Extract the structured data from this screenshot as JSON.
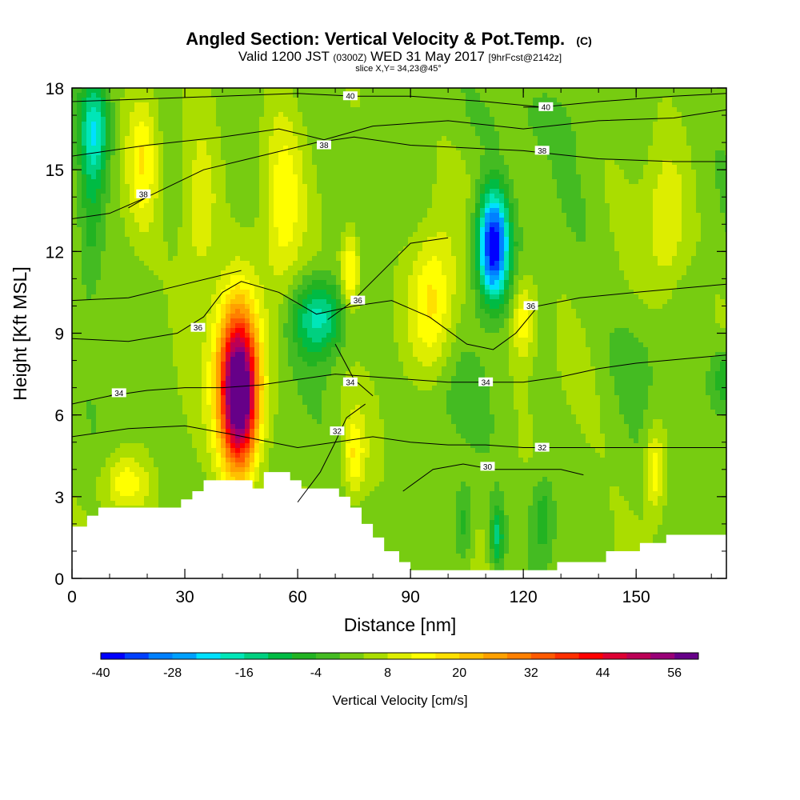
{
  "chart_data": {
    "type": "heatmap",
    "title": "Angled Section: Vertical Velocity & Pot.Temp.",
    "title_suffix": "(C)",
    "subtitle_parts": [
      "Valid 1200 JST",
      "(0300Z)",
      "WED 31 May 2017",
      "[9hrFcst@2142z]"
    ],
    "subtitle2": "slice X,Y= 34,23@45°",
    "xlabel": "Distance [nm]",
    "ylabel": "Height [Kft MSL]",
    "xlim": [
      0,
      174
    ],
    "ylim": [
      0,
      18
    ],
    "x_ticks": [
      0,
      30,
      60,
      90,
      120,
      150
    ],
    "y_ticks": [
      0,
      3,
      6,
      9,
      12,
      15,
      18
    ],
    "colorbar": {
      "label": "Vertical Velocity [cm/s]",
      "min": -40,
      "max": 60,
      "step": 4,
      "tick_labels": [
        -40,
        -28,
        -16,
        -4,
        8,
        20,
        32,
        44,
        56
      ],
      "colors": [
        "#0000ff",
        "#0040ff",
        "#0080ff",
        "#00a0ff",
        "#00e0ff",
        "#00e6b8",
        "#00d080",
        "#00bb44",
        "#22b322",
        "#44bb22",
        "#77cc11",
        "#aadd00",
        "#dded00",
        "#ffff00",
        "#ffe000",
        "#ffc000",
        "#ffa000",
        "#ff8000",
        "#ff5a00",
        "#ff3000",
        "#ff0000",
        "#dd0033",
        "#bb0055",
        "#990077",
        "#660088"
      ]
    },
    "terrain_kft": [
      [
        0,
        1.9
      ],
      [
        4,
        1.9
      ],
      [
        4,
        2.3
      ],
      [
        7,
        2.3
      ],
      [
        7,
        2.6
      ],
      [
        29,
        2.6
      ],
      [
        29,
        2.9
      ],
      [
        32,
        2.9
      ],
      [
        32,
        3.2
      ],
      [
        35,
        3.2
      ],
      [
        35,
        3.6
      ],
      [
        48,
        3.6
      ],
      [
        48,
        3.3
      ],
      [
        51,
        3.3
      ],
      [
        51,
        3.9
      ],
      [
        58,
        3.9
      ],
      [
        58,
        3.6
      ],
      [
        61,
        3.6
      ],
      [
        61,
        3.3
      ],
      [
        71,
        3.3
      ],
      [
        71,
        3.0
      ],
      [
        74,
        3.0
      ],
      [
        74,
        2.6
      ],
      [
        77,
        2.6
      ],
      [
        77,
        2.0
      ],
      [
        80,
        2.0
      ],
      [
        80,
        1.5
      ],
      [
        83,
        1.5
      ],
      [
        83,
        1.0
      ],
      [
        87,
        1.0
      ],
      [
        87,
        0.6
      ],
      [
        90,
        0.6
      ],
      [
        90,
        0.3
      ],
      [
        129,
        0.3
      ],
      [
        129,
        0.6
      ],
      [
        142,
        0.6
      ],
      [
        142,
        1.0
      ],
      [
        151,
        1.0
      ],
      [
        151,
        1.3
      ],
      [
        158,
        1.3
      ],
      [
        158,
        1.6
      ],
      [
        174,
        1.6
      ]
    ],
    "velocity_features": [
      {
        "x": 44.5,
        "z": 6.5,
        "sx": 5,
        "sz": 2.6,
        "value": 60
      },
      {
        "x": 43.5,
        "z": 8.5,
        "sx": 6,
        "sz": 2.5,
        "value": 18
      },
      {
        "x": 112,
        "z": 12.2,
        "sx": 4.2,
        "sz": 2.0,
        "value": -44
      },
      {
        "x": 66,
        "z": 9.6,
        "sx": 7,
        "sz": 1.4,
        "value": -20
      },
      {
        "x": 6,
        "z": 16.5,
        "sx": 4,
        "sz": 2.0,
        "value": -20
      },
      {
        "x": 5,
        "z": 13.0,
        "sx": 3.5,
        "sz": 3.0,
        "value": -9
      },
      {
        "x": 113,
        "z": 1.5,
        "sx": 1.8,
        "sz": 1.2,
        "value": -16
      },
      {
        "x": 104,
        "z": 2.0,
        "sx": 2.5,
        "sz": 1.5,
        "value": -10
      },
      {
        "x": 125,
        "z": 2.2,
        "sx": 3,
        "sz": 1.5,
        "value": -10
      },
      {
        "x": 174,
        "z": 7.3,
        "sx": 4,
        "sz": 1.2,
        "value": -12
      },
      {
        "x": 96,
        "z": 10.3,
        "sx": 6,
        "sz": 2.5,
        "value": 15
      },
      {
        "x": 74,
        "z": 11.2,
        "sx": 2.5,
        "sz": 1.5,
        "value": 17
      },
      {
        "x": 56,
        "z": 13.5,
        "sx": 5,
        "sz": 3.5,
        "value": 11
      },
      {
        "x": 34,
        "z": 13.5,
        "sx": 5,
        "sz": 3.0,
        "value": 11
      },
      {
        "x": 19,
        "z": 15.5,
        "sx": 4,
        "sz": 2.5,
        "value": 12
      },
      {
        "x": 155,
        "z": 4.0,
        "sx": 2.5,
        "sz": 1.5,
        "value": 14
      },
      {
        "x": 158,
        "z": 13,
        "sx": 5,
        "sz": 2.5,
        "value": 9
      },
      {
        "x": 14,
        "z": 3.5,
        "sx": 6,
        "sz": 1.0,
        "value": 12
      },
      {
        "x": 75,
        "z": 4.5,
        "sx": 3,
        "sz": 1.5,
        "value": 13
      },
      {
        "x": 120,
        "z": 9.5,
        "sx": 3,
        "sz": 1.5,
        "value": 13
      },
      {
        "x": 100,
        "z": 6.5,
        "sx": 10,
        "sz": 1.5,
        "value": -3
      },
      {
        "x": 120,
        "z": 16.8,
        "sx": 18,
        "sz": 1.2,
        "value": -3
      },
      {
        "x": 150,
        "z": 8,
        "sx": 6,
        "sz": 1.5,
        "value": -3
      }
    ],
    "contours": [
      {
        "label": "30",
        "points": [
          [
            88,
            3.2
          ],
          [
            96,
            4.0
          ],
          [
            104,
            4.2
          ],
          [
            112,
            4.0
          ],
          [
            120,
            4.0
          ],
          [
            130,
            4.0
          ],
          [
            136,
            3.8
          ]
        ],
        "label_at": [
          110.5,
          4.1
        ]
      },
      {
        "label": "32",
        "points": [
          [
            0,
            5.2
          ],
          [
            15,
            5.5
          ],
          [
            30,
            5.6
          ],
          [
            42,
            5.3
          ],
          [
            60,
            4.8
          ],
          [
            70,
            5.0
          ],
          [
            80,
            5.2
          ],
          [
            90,
            5.0
          ],
          [
            100,
            4.9
          ],
          [
            110,
            4.9
          ],
          [
            120,
            4.8
          ],
          [
            130,
            4.8
          ],
          [
            150,
            4.8
          ],
          [
            174,
            4.8
          ]
        ],
        "label_at": [
          125,
          4.8
        ]
      },
      {
        "label": "32",
        "points": [
          [
            60,
            2.8
          ],
          [
            66,
            3.9
          ],
          [
            70,
            5.0
          ],
          [
            73,
            5.9
          ],
          [
            78,
            6.4
          ]
        ],
        "label_at": [
          70.5,
          5.4
        ]
      },
      {
        "label": "34",
        "points": [
          [
            0,
            6.4
          ],
          [
            10,
            6.7
          ],
          [
            20,
            6.9
          ],
          [
            30,
            7.0
          ],
          [
            40,
            7.0
          ],
          [
            50,
            7.1
          ],
          [
            60,
            7.3
          ],
          [
            70,
            7.5
          ],
          [
            80,
            7.4
          ],
          [
            90,
            7.3
          ],
          [
            100,
            7.2
          ],
          [
            110,
            7.2
          ],
          [
            120,
            7.2
          ],
          [
            130,
            7.4
          ],
          [
            140,
            7.7
          ],
          [
            150,
            7.9
          ],
          [
            174,
            8.2
          ]
        ],
        "label_at": [
          110,
          7.2
        ]
      },
      {
        "label": "34",
        "points": [
          [
            10,
            6.7
          ],
          [
            12,
            6.8
          ]
        ],
        "label_at": [
          12.5,
          6.8
        ]
      },
      {
        "label": "34",
        "points": [
          [
            70,
            8.6
          ],
          [
            75,
            7.3
          ],
          [
            80,
            6.7
          ]
        ],
        "label_at": [
          74,
          7.2
        ]
      },
      {
        "label": "36",
        "points": [
          [
            0,
            8.8
          ],
          [
            15,
            8.7
          ],
          [
            28,
            9.0
          ],
          [
            35,
            9.6
          ],
          [
            40,
            10.5
          ],
          [
            45,
            10.9
          ],
          [
            55,
            10.5
          ],
          [
            65,
            9.7
          ],
          [
            75,
            10.0
          ],
          [
            85,
            10.2
          ],
          [
            95,
            9.6
          ],
          [
            105,
            8.6
          ],
          [
            112,
            8.4
          ],
          [
            118,
            9.0
          ],
          [
            124,
            10.0
          ],
          [
            135,
            10.3
          ],
          [
            150,
            10.5
          ],
          [
            174,
            10.8
          ]
        ],
        "label_at": [
          122,
          10.0
        ]
      },
      {
        "label": "36",
        "points": [
          [
            0,
            10.2
          ],
          [
            15,
            10.3
          ],
          [
            30,
            10.8
          ],
          [
            45,
            11.3
          ]
        ],
        "label_at": [
          33.5,
          9.2
        ]
      },
      {
        "label": "36",
        "points": [
          [
            68,
            9.5
          ],
          [
            74,
            10.1
          ],
          [
            82,
            11.2
          ],
          [
            90,
            12.3
          ],
          [
            100,
            12.5
          ]
        ],
        "label_at": [
          76,
          10.2
        ]
      },
      {
        "label": "38",
        "points": [
          [
            0,
            13.2
          ],
          [
            10,
            13.4
          ],
          [
            20,
            14.0
          ],
          [
            35,
            15.0
          ],
          [
            50,
            15.5
          ],
          [
            65,
            16.0
          ],
          [
            75,
            16.2
          ],
          [
            90,
            15.9
          ],
          [
            105,
            15.8
          ],
          [
            120,
            15.7
          ],
          [
            140,
            15.4
          ],
          [
            160,
            15.3
          ],
          [
            174,
            15.3
          ]
        ],
        "label_at": [
          125,
          15.7
        ]
      },
      {
        "label": "38",
        "points": [
          [
            0,
            15.5
          ],
          [
            20,
            15.9
          ],
          [
            40,
            16.2
          ],
          [
            55,
            16.5
          ],
          [
            67,
            16.1
          ],
          [
            80,
            16.6
          ],
          [
            100,
            16.8
          ],
          [
            120,
            16.5
          ],
          [
            140,
            16.8
          ],
          [
            160,
            16.9
          ],
          [
            174,
            17.2
          ]
        ],
        "label_at": [
          67,
          15.9
        ]
      },
      {
        "label": "38",
        "points": [
          [
            15,
            13.6
          ],
          [
            20,
            14.0
          ]
        ],
        "label_at": [
          19,
          14.1
        ]
      },
      {
        "label": "40",
        "points": [
          [
            0,
            17.5
          ],
          [
            20,
            17.6
          ],
          [
            40,
            17.7
          ],
          [
            60,
            17.8
          ],
          [
            75,
            17.7
          ],
          [
            90,
            17.7
          ],
          [
            110,
            17.5
          ],
          [
            125,
            17.3
          ],
          [
            140,
            17.5
          ],
          [
            160,
            17.7
          ],
          [
            174,
            17.8
          ]
        ],
        "label_at": [
          74,
          17.7
        ]
      },
      {
        "label": "40",
        "points": [
          [
            120,
            17.3
          ],
          [
            126,
            17.3
          ]
        ],
        "label_at": [
          126,
          17.3
        ]
      }
    ]
  }
}
